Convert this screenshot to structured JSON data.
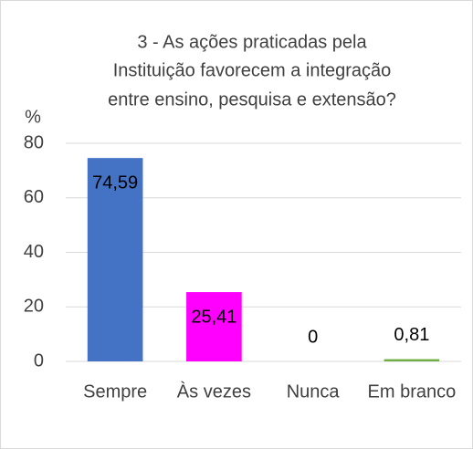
{
  "chart_data": {
    "type": "bar",
    "title": [
      "3 - As ações praticadas pela",
      "Instituição favorecem a integração",
      "entre ensino, pesquisa e extensão?"
    ],
    "y_label": "%",
    "categories": [
      "Sempre",
      "Às vezes",
      "Nunca",
      "Em branco"
    ],
    "values": [
      74.59,
      25.41,
      0,
      0.81
    ],
    "value_labels": [
      "74,59",
      "25,41",
      "0",
      "0,81"
    ],
    "colors": [
      "#4472c4",
      "#ff00ff",
      "#ffc000",
      "#70ad47"
    ],
    "ylim": [
      0,
      80
    ],
    "yticks": [
      0,
      20,
      40,
      60,
      80
    ],
    "grid": true
  }
}
